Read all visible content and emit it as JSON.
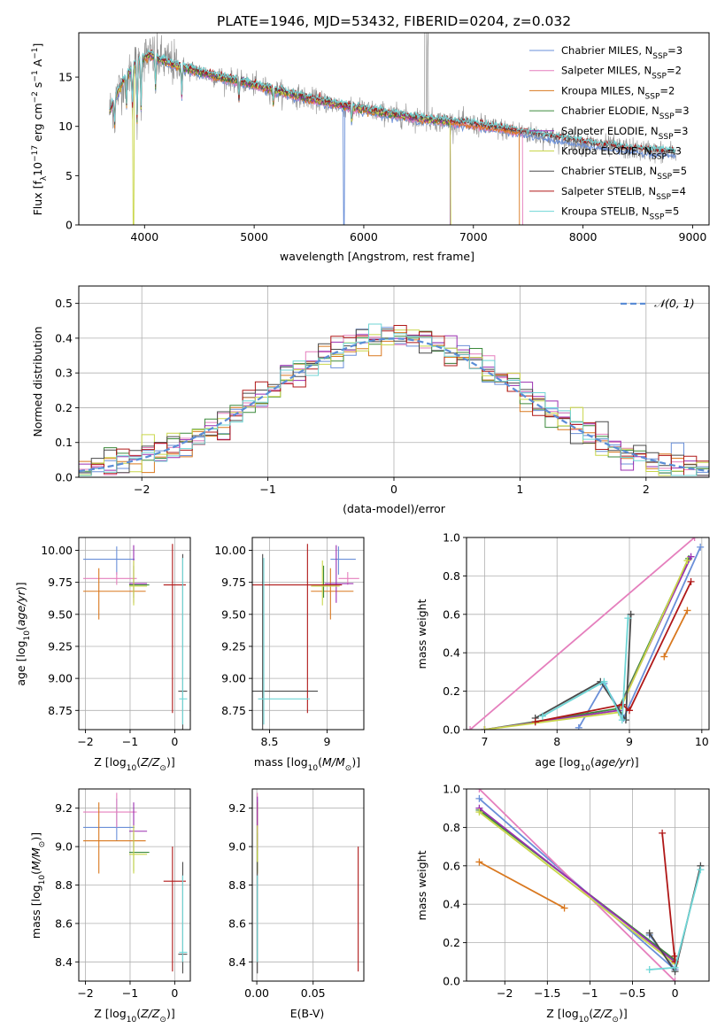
{
  "figure_title": "PLATE=1946, MJD=53432, FIBERID=0204, z=0.032",
  "palette": {
    "Chabrier MILES": "#6a8fd8",
    "Salpeter MILES": "#e57fbd",
    "Kroupa MILES": "#d9781f",
    "Chabrier ELODIE": "#3c8a3c",
    "Salpeter ELODIE": "#9a2fb0",
    "Kroupa ELODIE": "#c9d64a",
    "Chabrier STELIB": "#4a4a4a",
    "Salpeter STELIB": "#b01818",
    "Kroupa STELIB": "#6fd6d6",
    "data": "#8c8c8c"
  },
  "chart_data": [
    {
      "id": "spectrum",
      "type": "line",
      "xlabel": "wavelength [Angstrom, rest frame]",
      "ylabel": "Flux [f_λ 10^-17 erg cm^-2 s^-1 A^-1]",
      "xlim": [
        3400,
        9150
      ],
      "ylim": [
        0,
        19.5
      ],
      "xticks": [
        4000,
        5000,
        6000,
        7000,
        8000,
        9000
      ],
      "yticks": [
        0,
        5,
        10,
        15
      ],
      "grid": false,
      "legend_position": "top-right",
      "data_line": {
        "color": "#8c8c8c",
        "x_range": [
          3680,
          8850
        ]
      },
      "continuum": {
        "x": [
          3680,
          3800,
          3950,
          4050,
          4200,
          4500,
          5000,
          5500,
          6000,
          6500,
          7000,
          7500,
          8000,
          8500,
          8850
        ],
        "y": [
          11.5,
          14.5,
          16.8,
          17.2,
          16.5,
          15.5,
          14.2,
          12.8,
          11.7,
          10.8,
          10.2,
          9.3,
          8.3,
          7.6,
          7.3
        ]
      },
      "series": [
        {
          "name": "Chabrier MILES, N_SSP=3",
          "color": "#6a8fd8",
          "x_range": [
            3680,
            8850
          ],
          "dips": [
            [
              5820,
              0
            ]
          ]
        },
        {
          "name": "Salpeter MILES, N_SSP=2",
          "color": "#e57fbd",
          "x_range": [
            3680,
            7450
          ],
          "dips": []
        },
        {
          "name": "Kroupa MILES, N_SSP=2",
          "color": "#d9781f",
          "x_range": [
            3680,
            7420
          ],
          "dips": []
        },
        {
          "name": "Chabrier ELODIE, N_SSP=3",
          "color": "#3c8a3c",
          "x_range": [
            3680,
            6790
          ],
          "dips": []
        },
        {
          "name": "Salpeter ELODIE, N_SSP=3",
          "color": "#9a2fb0",
          "x_range": [
            3680,
            6790
          ],
          "dips": []
        },
        {
          "name": "Kroupa ELODIE, N_SSP=3",
          "color": "#c9d64a",
          "x_range": [
            3680,
            6800
          ],
          "dips": [
            [
              3900,
              0
            ],
            [
              6800,
              0
            ]
          ]
        },
        {
          "name": "Chabrier STELIB, N_SSP=5",
          "color": "#4a4a4a",
          "x_range": [
            3680,
            8850
          ],
          "dips": []
        },
        {
          "name": "Salpeter STELIB, N_SSP=4",
          "color": "#b01818",
          "x_range": [
            3680,
            8850
          ],
          "dips": []
        },
        {
          "name": "Kroupa STELIB, N_SSP=5",
          "color": "#6fd6d6",
          "x_range": [
            3680,
            8850
          ],
          "dips": []
        }
      ]
    },
    {
      "id": "residuals",
      "type": "histogram",
      "xlabel": "(data-model)/error",
      "ylabel": "Normed distribution",
      "xlim": [
        -2.5,
        2.5
      ],
      "ylim": [
        0,
        0.55
      ],
      "xticks": [
        -2,
        -1,
        0,
        1,
        2
      ],
      "yticks": [
        0.0,
        0.1,
        0.2,
        0.3,
        0.4,
        0.5
      ],
      "grid": true,
      "legend_position": "top-right",
      "reference_label": "𝒩(0, 1)",
      "reference_color": "#5b8dd6",
      "bin_width": 0.1
    },
    {
      "id": "age_vs_Z",
      "type": "errorbar",
      "xlabel": "Z [log10(Z/Z⊙)]",
      "ylabel": "age  [log10(age/yr)]",
      "xlim": [
        -2.15,
        0.35
      ],
      "ylim": [
        8.6,
        10.1
      ],
      "xticks": [
        -2,
        -1,
        0
      ],
      "yticks": [
        8.75,
        9.0,
        9.25,
        9.5,
        9.75,
        10.0
      ],
      "grid": true,
      "points": [
        {
          "model": "Chabrier MILES",
          "x": -1.3,
          "xerr": [
            0.75,
            0.4
          ],
          "y": 9.93,
          "yerr": [
            0.12,
            0.1
          ]
        },
        {
          "model": "Salpeter MILES",
          "x": -1.3,
          "xerr": [
            0.75,
            0.45
          ],
          "y": 9.78,
          "yerr": [
            0.05,
            0.05
          ]
        },
        {
          "model": "Kroupa MILES",
          "x": -1.7,
          "xerr": [
            0.35,
            1.05
          ],
          "y": 9.68,
          "yerr": [
            0.22,
            0.18
          ]
        },
        {
          "model": "Chabrier ELODIE",
          "x": -0.92,
          "xerr": [
            0.1,
            0.35
          ],
          "y": 9.73,
          "yerr": [
            0.1,
            0.15
          ]
        },
        {
          "model": "Salpeter ELODIE",
          "x": -0.92,
          "xerr": [
            0.1,
            0.3
          ],
          "y": 9.74,
          "yerr": [
            0.15,
            0.3
          ]
        },
        {
          "model": "Kroupa ELODIE",
          "x": -0.92,
          "xerr": [
            0.1,
            0.3
          ],
          "y": 9.72,
          "yerr": [
            0.15,
            0.2
          ]
        },
        {
          "model": "Chabrier STELIB",
          "x": 0.18,
          "xerr": [
            0.1,
            0.1
          ],
          "y": 8.9,
          "yerr": [
            0.3,
            1.07
          ]
        },
        {
          "model": "Salpeter STELIB",
          "x": -0.05,
          "xerr": [
            0.2,
            0.3
          ],
          "y": 9.73,
          "yerr": [
            1.0,
            0.32
          ]
        },
        {
          "model": "Kroupa STELIB",
          "x": 0.18,
          "xerr": [
            0.08,
            0.1
          ],
          "y": 8.84,
          "yerr": [
            0.2,
            1.1
          ]
        }
      ]
    },
    {
      "id": "age_vs_mass",
      "type": "errorbar",
      "xlabel": "mass [log10(M/M⊙)]",
      "ylabel": "",
      "xlim": [
        8.35,
        9.32
      ],
      "ylim": [
        8.6,
        10.1
      ],
      "xticks": [
        8.5,
        9.0
      ],
      "yticks": [
        8.75,
        9.0,
        9.25,
        9.5,
        9.75,
        10.0
      ],
      "grid": true,
      "points": [
        {
          "model": "Chabrier MILES",
          "x": 9.1,
          "xerr": [
            0.07,
            0.15
          ],
          "y": 9.93,
          "yerr": [
            0.12,
            0.1
          ]
        },
        {
          "model": "Salpeter MILES",
          "x": 9.18,
          "xerr": [
            0.08,
            0.1
          ],
          "y": 9.78,
          "yerr": [
            0.05,
            0.05
          ]
        },
        {
          "model": "Kroupa MILES",
          "x": 9.03,
          "xerr": [
            0.17,
            0.2
          ],
          "y": 9.68,
          "yerr": [
            0.22,
            0.18
          ]
        },
        {
          "model": "Chabrier ELODIE",
          "x": 8.97,
          "xerr": [
            0.1,
            0.1
          ],
          "y": 9.73,
          "yerr": [
            0.1,
            0.15
          ]
        },
        {
          "model": "Salpeter ELODIE",
          "x": 9.08,
          "xerr": [
            0.1,
            0.15
          ],
          "y": 9.74,
          "yerr": [
            0.15,
            0.3
          ]
        },
        {
          "model": "Kroupa ELODIE",
          "x": 8.96,
          "xerr": [
            0.1,
            0.15
          ],
          "y": 9.72,
          "yerr": [
            0.15,
            0.2
          ]
        },
        {
          "model": "Chabrier STELIB",
          "x": 8.44,
          "xerr": [
            0.1,
            0.48
          ],
          "y": 8.9,
          "yerr": [
            0.3,
            1.07
          ]
        },
        {
          "model": "Salpeter STELIB",
          "x": 8.83,
          "xerr": [
            0.5,
            0.3
          ],
          "y": 9.73,
          "yerr": [
            1.0,
            0.32
          ]
        },
        {
          "model": "Kroupa STELIB",
          "x": 8.45,
          "xerr": [
            0.05,
            0.4
          ],
          "y": 8.84,
          "yerr": [
            0.2,
            1.1
          ]
        }
      ]
    },
    {
      "id": "weight_vs_age",
      "type": "line",
      "xlabel": "age  [log10(age/yr)]",
      "ylabel": "mass weight",
      "xlim": [
        6.75,
        10.1
      ],
      "ylim": [
        0,
        1
      ],
      "xticks": [
        7,
        8,
        9,
        10
      ],
      "yticks": [
        0.0,
        0.2,
        0.4,
        0.6,
        0.8,
        1.0
      ],
      "grid": true,
      "series": [
        {
          "model": "Chabrier MILES",
          "x": [
            8.3,
            8.65,
            8.92,
            9.98
          ],
          "y": [
            0.01,
            0.24,
            0.06,
            0.95
          ]
        },
        {
          "model": "Salpeter MILES",
          "x": [
            6.8,
            9.9
          ],
          "y": [
            0.0,
            1.0
          ]
        },
        {
          "model": "Kroupa MILES",
          "x": [
            9.48,
            9.8
          ],
          "y": [
            0.38,
            0.62
          ]
        },
        {
          "model": "Chabrier ELODIE",
          "x": [
            7.0,
            8.85,
            9.82
          ],
          "y": [
            0.0,
            0.11,
            0.89
          ]
        },
        {
          "model": "Salpeter ELODIE",
          "x": [
            7.0,
            8.85,
            9.85
          ],
          "y": [
            0.0,
            0.1,
            0.9
          ]
        },
        {
          "model": "Kroupa ELODIE",
          "x": [
            7.0,
            8.85,
            9.8
          ],
          "y": [
            0.0,
            0.09,
            0.88
          ]
        },
        {
          "model": "Chabrier STELIB",
          "x": [
            7.7,
            8.6,
            8.95,
            9.02
          ],
          "y": [
            0.06,
            0.25,
            0.05,
            0.6
          ]
        },
        {
          "model": "Salpeter STELIB",
          "x": [
            7.7,
            8.9,
            9.0,
            9.85
          ],
          "y": [
            0.04,
            0.13,
            0.1,
            0.77
          ]
        },
        {
          "model": "Kroupa STELIB",
          "x": [
            7.8,
            8.65,
            8.9,
            8.98
          ],
          "y": [
            0.07,
            0.25,
            0.05,
            0.58
          ]
        }
      ]
    },
    {
      "id": "mass_vs_Z",
      "type": "errorbar",
      "xlabel": "Z [log10(Z/Z⊙)]",
      "ylabel": "mass [log10(M/M⊙)]",
      "xlim": [
        -2.15,
        0.35
      ],
      "ylim": [
        8.3,
        9.3
      ],
      "xticks": [
        -2,
        -1,
        0
      ],
      "yticks": [
        8.4,
        8.6,
        8.8,
        9.0,
        9.2
      ],
      "grid": true,
      "points": [
        {
          "model": "Chabrier MILES",
          "x": -1.3,
          "xerr": [
            0.75,
            0.4
          ],
          "y": 9.1,
          "yerr": [
            0.07,
            0.15
          ]
        },
        {
          "model": "Salpeter MILES",
          "x": -1.3,
          "xerr": [
            0.75,
            0.45
          ],
          "y": 9.18,
          "yerr": [
            0.08,
            0.1
          ]
        },
        {
          "model": "Kroupa MILES",
          "x": -1.7,
          "xerr": [
            0.35,
            1.05
          ],
          "y": 9.03,
          "yerr": [
            0.17,
            0.2
          ]
        },
        {
          "model": "Chabrier ELODIE",
          "x": -0.92,
          "xerr": [
            0.1,
            0.35
          ],
          "y": 8.97,
          "yerr": [
            0.1,
            0.1
          ]
        },
        {
          "model": "Salpeter ELODIE",
          "x": -0.92,
          "xerr": [
            0.1,
            0.3
          ],
          "y": 9.08,
          "yerr": [
            0.1,
            0.15
          ]
        },
        {
          "model": "Kroupa ELODIE",
          "x": -0.92,
          "xerr": [
            0.1,
            0.3
          ],
          "y": 8.96,
          "yerr": [
            0.1,
            0.15
          ]
        },
        {
          "model": "Chabrier STELIB",
          "x": 0.18,
          "xerr": [
            0.1,
            0.1
          ],
          "y": 8.44,
          "yerr": [
            0.1,
            0.48
          ]
        },
        {
          "model": "Salpeter STELIB",
          "x": -0.05,
          "xerr": [
            0.2,
            0.3
          ],
          "y": 8.82,
          "yerr": [
            0.47,
            0.18
          ]
        },
        {
          "model": "Kroupa STELIB",
          "x": 0.18,
          "xerr": [
            0.08,
            0.1
          ],
          "y": 8.45,
          "yerr": [
            0.05,
            0.4
          ]
        }
      ]
    },
    {
      "id": "mass_vs_EBV",
      "type": "errorbar",
      "xlabel": "E(B-V)",
      "ylabel": "",
      "xlim": [
        -0.004,
        0.095
      ],
      "ylim": [
        8.3,
        9.3
      ],
      "xticks": [
        0.0,
        0.05
      ],
      "yticks": [
        8.4,
        8.6,
        8.8,
        9.0,
        9.2
      ],
      "grid": true,
      "points": [
        {
          "model": "Chabrier MILES",
          "x": 0.0005,
          "y": 9.1,
          "yerr": [
            0.07,
            0.15
          ]
        },
        {
          "model": "Salpeter MILES",
          "x": 0.0005,
          "y": 9.18,
          "yerr": [
            0.08,
            0.1
          ]
        },
        {
          "model": "Kroupa MILES",
          "x": 0.0005,
          "y": 9.03,
          "yerr": [
            0.17,
            0.2
          ]
        },
        {
          "model": "Chabrier ELODIE",
          "x": 0.0005,
          "y": 8.97,
          "yerr": [
            0.1,
            0.1
          ]
        },
        {
          "model": "Salpeter ELODIE",
          "x": 0.0005,
          "y": 9.08,
          "yerr": [
            0.1,
            0.18
          ]
        },
        {
          "model": "Kroupa ELODIE",
          "x": 0.0005,
          "y": 8.96,
          "yerr": [
            0.1,
            0.15
          ]
        },
        {
          "model": "Chabrier STELIB",
          "x": 0.0005,
          "y": 8.44,
          "yerr": [
            0.1,
            0.48
          ]
        },
        {
          "model": "Salpeter STELIB",
          "x": 0.09,
          "y": 8.82,
          "yerr": [
            0.47,
            0.18
          ]
        },
        {
          "model": "Kroupa STELIB",
          "x": 0.0005,
          "y": 8.45,
          "yerr": [
            0.05,
            0.4
          ]
        }
      ]
    },
    {
      "id": "weight_vs_Z",
      "type": "line",
      "xlabel": "Z [log10(Z/Z⊙)]",
      "ylabel": "mass weight",
      "xlim": [
        -2.45,
        0.4
      ],
      "ylim": [
        0,
        1
      ],
      "xticks": [
        -2.0,
        -1.5,
        -1.0,
        -0.5,
        0.0
      ],
      "yticks": [
        0.0,
        0.2,
        0.4,
        0.6,
        0.8,
        1.0
      ],
      "grid": true,
      "series": [
        {
          "model": "Chabrier MILES",
          "x": [
            -2.3,
            0.0,
            -0.3
          ],
          "y": [
            0.95,
            0.06,
            0.24
          ]
        },
        {
          "model": "Salpeter MILES",
          "x": [
            -2.3,
            0.0
          ],
          "y": [
            1.0,
            0.0
          ]
        },
        {
          "model": "Kroupa MILES",
          "x": [
            -2.3,
            -1.3
          ],
          "y": [
            0.62,
            0.38
          ]
        },
        {
          "model": "Chabrier ELODIE",
          "x": [
            -2.3,
            0.0
          ],
          "y": [
            0.89,
            0.11
          ]
        },
        {
          "model": "Salpeter ELODIE",
          "x": [
            -2.3,
            0.0
          ],
          "y": [
            0.9,
            0.1
          ]
        },
        {
          "model": "Kroupa ELODIE",
          "x": [
            -2.3,
            0.0
          ],
          "y": [
            0.88,
            0.09
          ]
        },
        {
          "model": "Chabrier STELIB",
          "x": [
            -0.3,
            0.0,
            0.3
          ],
          "y": [
            0.25,
            0.05,
            0.6
          ]
        },
        {
          "model": "Salpeter STELIB",
          "x": [
            -0.15,
            0.0,
            0.0
          ],
          "y": [
            0.77,
            0.1,
            0.13
          ]
        },
        {
          "model": "Kroupa STELIB",
          "x": [
            -0.3,
            0.0,
            0.3
          ],
          "y": [
            0.06,
            0.07,
            0.58
          ]
        }
      ]
    }
  ]
}
